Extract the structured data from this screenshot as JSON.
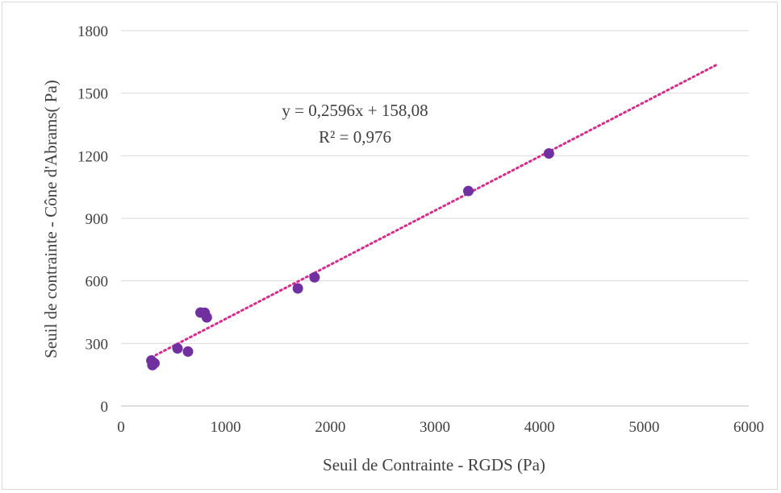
{
  "chart_data": {
    "type": "scatter",
    "title": "",
    "xlabel": "Seuil de Contrainte  - RGDS (Pa)",
    "ylabel": "Seuil de contrainte - Cône  d'Abrams( Pa)",
    "xlim": [
      0,
      6000
    ],
    "ylim": [
      0,
      1800
    ],
    "xticks": [
      "0",
      "1000",
      "2000",
      "3000",
      "4000",
      "5000",
      "6000"
    ],
    "yticks": [
      "0",
      "300",
      "600",
      "900",
      "1200",
      "1500",
      "1800"
    ],
    "grid": "horizontal",
    "series": [
      {
        "points": [
          {
            "x": 290,
            "y": 218
          },
          {
            "x": 300,
            "y": 196
          },
          {
            "x": 320,
            "y": 205
          },
          {
            "x": 540,
            "y": 276
          },
          {
            "x": 640,
            "y": 261
          },
          {
            "x": 760,
            "y": 448
          },
          {
            "x": 800,
            "y": 447
          },
          {
            "x": 820,
            "y": 425
          },
          {
            "x": 1690,
            "y": 564
          },
          {
            "x": 1850,
            "y": 617
          },
          {
            "x": 3320,
            "y": 1031
          },
          {
            "x": 4090,
            "y": 1211
          }
        ],
        "color": "#7030a0"
      }
    ],
    "trendline": {
      "type": "linear",
      "slope": 0.2596,
      "intercept": 158.08,
      "x_range": [
        290,
        5700
      ],
      "color": "#d62d8c",
      "equation_text": "y = 0,2596x + 158,08",
      "r2_text": "R² = 0,976"
    }
  }
}
